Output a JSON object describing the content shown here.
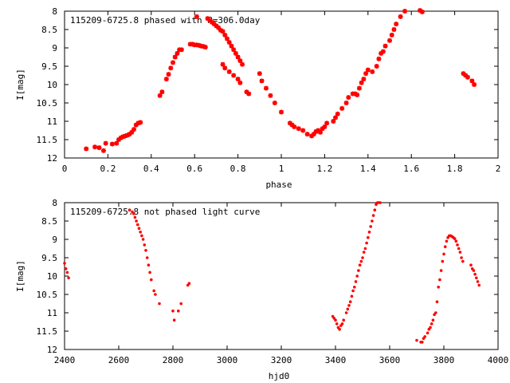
{
  "chart_data": [
    {
      "type": "scatter",
      "title": "115209-6725.8 phased with P=306.0day",
      "xlabel": "phase",
      "ylabel": "I[mag]",
      "xlim": [
        0,
        2
      ],
      "ylim": [
        12,
        8
      ],
      "y_inverted": true,
      "grid": false,
      "marker_color": "#ff0000",
      "x_ticks": [
        "0",
        "0.2",
        "0.4",
        "0.6",
        "0.8",
        "1",
        "1.2",
        "1.4",
        "1.6",
        "1.8",
        "2"
      ],
      "y_ticks": [
        "8",
        "8.5",
        "9",
        "9.5",
        "10",
        "10.5",
        "11",
        "11.5",
        "12"
      ],
      "series": [
        {
          "x": [
            0.1,
            0.14,
            0.16,
            0.18,
            0.19,
            0.22,
            0.24,
            0.25,
            0.26,
            0.27,
            0.28,
            0.29,
            0.3,
            0.31,
            0.32,
            0.33,
            0.34,
            0.35,
            0.44,
            0.45,
            0.47,
            0.48,
            0.49,
            0.5,
            0.51,
            0.52,
            0.53,
            0.54,
            0.58,
            0.59,
            0.6,
            0.61,
            0.62,
            0.63,
            0.64,
            0.65,
            0.61,
            0.66,
            0.67,
            0.68,
            0.69,
            0.7,
            0.71,
            0.72,
            0.73,
            0.74,
            0.75,
            0.76,
            0.77,
            0.78,
            0.79,
            0.8,
            0.81,
            0.82,
            0.73,
            0.74,
            0.76,
            0.78,
            0.8,
            0.81,
            0.84,
            0.85,
            0.9,
            0.91,
            0.93,
            0.95,
            0.97,
            1.0,
            1.04,
            1.05,
            1.06,
            1.08,
            1.1,
            1.12,
            1.14,
            1.15,
            1.16,
            1.17,
            1.18,
            1.19,
            1.2,
            1.21,
            1.24,
            1.25,
            1.26,
            1.28,
            1.3,
            1.31,
            1.33,
            1.34,
            1.35,
            1.36,
            1.37,
            1.38,
            1.39,
            1.4,
            1.42,
            1.44,
            1.45,
            1.46,
            1.47,
            1.48,
            1.5,
            1.51,
            1.52,
            1.53,
            1.55,
            1.57,
            1.64,
            1.65,
            1.84,
            1.85,
            1.86,
            1.88,
            1.89
          ],
          "y": [
            11.75,
            11.7,
            11.72,
            11.8,
            11.6,
            11.62,
            11.6,
            11.5,
            11.45,
            11.42,
            11.4,
            11.38,
            11.35,
            11.3,
            11.22,
            11.1,
            11.05,
            11.03,
            10.3,
            10.2,
            9.85,
            9.72,
            9.55,
            9.4,
            9.25,
            9.15,
            9.05,
            9.05,
            8.9,
            8.9,
            8.92,
            8.92,
            8.93,
            8.95,
            8.96,
            8.98,
            8.15,
            8.2,
            8.25,
            8.3,
            8.35,
            8.4,
            8.45,
            8.52,
            8.55,
            8.65,
            8.75,
            8.85,
            8.95,
            9.05,
            9.15,
            9.25,
            9.35,
            9.45,
            9.45,
            9.55,
            9.65,
            9.75,
            9.85,
            9.95,
            10.2,
            10.25,
            9.7,
            9.9,
            10.1,
            10.3,
            10.5,
            10.75,
            11.05,
            11.1,
            11.15,
            11.2,
            11.25,
            11.35,
            11.4,
            11.35,
            11.28,
            11.25,
            11.3,
            11.2,
            11.15,
            11.05,
            11.0,
            10.9,
            10.8,
            10.65,
            10.5,
            10.35,
            10.25,
            10.25,
            10.28,
            10.1,
            9.95,
            9.85,
            9.7,
            9.6,
            9.65,
            9.5,
            9.3,
            9.15,
            9.1,
            8.95,
            8.8,
            8.65,
            8.5,
            8.35,
            8.15,
            8.0,
            7.98,
            8.02,
            9.7,
            9.75,
            9.8,
            9.9,
            10.0
          ]
        }
      ]
    },
    {
      "type": "scatter",
      "title": "115209-6725.8 not phased light curve",
      "xlabel": "hjd0",
      "ylabel": "I[mag]",
      "xlim": [
        2400,
        4000
      ],
      "ylim": [
        12,
        8
      ],
      "y_inverted": true,
      "grid": false,
      "marker_color": "#ff0000",
      "x_ticks": [
        "2400",
        "2600",
        "2800",
        "3000",
        "3200",
        "3400",
        "3600",
        "3800",
        "4000"
      ],
      "y_ticks": [
        "8",
        "8.5",
        "9",
        "9.5",
        "10",
        "10.5",
        "11",
        "11.5",
        "12"
      ],
      "series": [
        {
          "x": [
            2400,
            2405,
            2410,
            2415,
            2640,
            2650,
            2655,
            2660,
            2665,
            2670,
            2675,
            2680,
            2685,
            2690,
            2695,
            2700,
            2705,
            2710,
            2715,
            2720,
            2730,
            2735,
            2750,
            2800,
            2805,
            2820,
            2830,
            2855,
            2860,
            3390,
            3395,
            3400,
            3405,
            3410,
            3415,
            3420,
            3425,
            3430,
            3440,
            3445,
            3450,
            3455,
            3460,
            3465,
            3470,
            3475,
            3480,
            3485,
            3490,
            3495,
            3500,
            3505,
            3510,
            3515,
            3520,
            3525,
            3530,
            3535,
            3540,
            3545,
            3550,
            3555,
            3560,
            3565,
            3700,
            3715,
            3720,
            3725,
            3730,
            3740,
            3745,
            3750,
            3755,
            3760,
            3765,
            3770,
            3775,
            3780,
            3785,
            3790,
            3795,
            3800,
            3805,
            3810,
            3815,
            3820,
            3825,
            3830,
            3835,
            3840,
            3845,
            3850,
            3855,
            3860,
            3865,
            3870,
            3900,
            3905,
            3910,
            3915,
            3920,
            3925,
            3930
          ],
          "y": [
            9.65,
            9.8,
            9.9,
            10.05,
            8.2,
            8.25,
            8.3,
            8.4,
            8.5,
            8.6,
            8.7,
            8.8,
            8.9,
            9.0,
            9.15,
            9.3,
            9.5,
            9.7,
            9.9,
            10.1,
            10.4,
            10.5,
            10.75,
            10.95,
            11.2,
            10.95,
            10.75,
            10.25,
            10.2,
            11.1,
            11.15,
            11.2,
            11.3,
            11.4,
            11.45,
            11.35,
            11.3,
            11.2,
            11.0,
            10.9,
            10.8,
            10.7,
            10.55,
            10.4,
            10.3,
            10.15,
            10.0,
            9.85,
            9.7,
            9.6,
            9.5,
            9.35,
            9.25,
            9.1,
            8.95,
            8.8,
            8.65,
            8.5,
            8.35,
            8.2,
            8.05,
            8.0,
            8.0,
            8.0,
            11.75,
            11.8,
            11.8,
            11.7,
            11.65,
            11.55,
            11.45,
            11.4,
            11.3,
            11.2,
            11.05,
            11.0,
            10.7,
            10.3,
            10.1,
            9.85,
            9.6,
            9.4,
            9.2,
            9.05,
            8.95,
            8.9,
            8.9,
            8.92,
            8.95,
            8.98,
            9.05,
            9.15,
            9.25,
            9.35,
            9.5,
            9.6,
            9.7,
            9.8,
            9.85,
            9.95,
            10.05,
            10.15,
            10.25
          ]
        }
      ]
    }
  ]
}
